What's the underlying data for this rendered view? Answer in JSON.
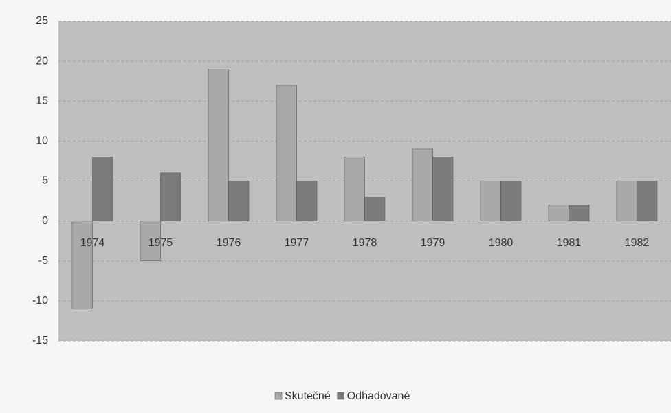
{
  "chart_data": {
    "type": "bar",
    "categories": [
      "1974",
      "1975",
      "1976",
      "1977",
      "1978",
      "1979",
      "1980",
      "1981",
      "1982"
    ],
    "series": [
      {
        "name": "Skutečné",
        "color": "#a9a9a9",
        "values": [
          -11,
          -5,
          19,
          17,
          8,
          9,
          5,
          2,
          5
        ]
      },
      {
        "name": "Odhadované",
        "color": "#7c7c7c",
        "values": [
          8,
          6,
          5,
          5,
          3,
          8,
          5,
          2,
          5
        ]
      }
    ],
    "ylim": [
      -15,
      25
    ],
    "yticks": [
      -15,
      -10,
      -5,
      0,
      5,
      10,
      15,
      20,
      25
    ],
    "grid": true,
    "legend": "bottom"
  }
}
